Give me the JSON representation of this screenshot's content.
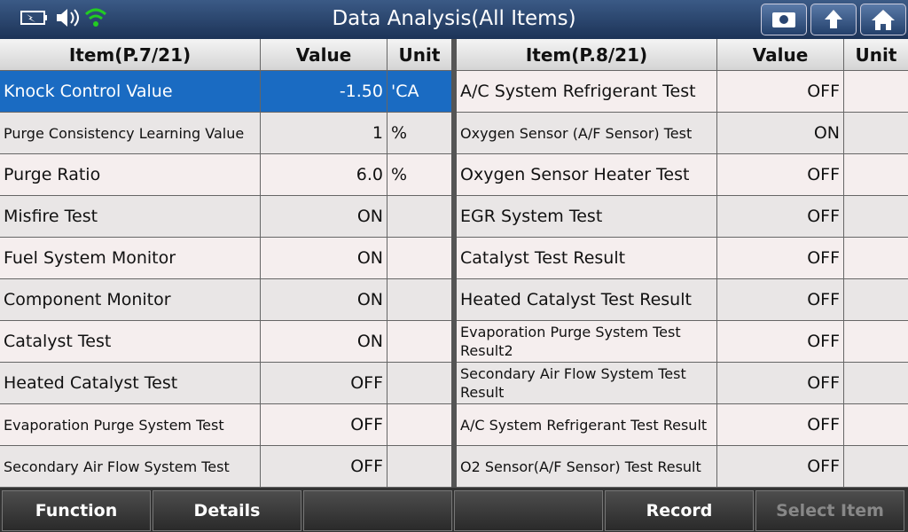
{
  "header": {
    "title": "Data Analysis(All Items)"
  },
  "left_table": {
    "columns": [
      "Item(P.7/21)",
      "Value",
      "Unit"
    ],
    "rows": [
      {
        "item": "Knock Control Value",
        "value": "-1.50",
        "unit": "'CA"
      },
      {
        "item": "Purge Consistency Learning Value",
        "value": "1",
        "unit": "%"
      },
      {
        "item": "Purge Ratio",
        "value": "6.0",
        "unit": "%"
      },
      {
        "item": "Misfire Test",
        "value": "ON"
      },
      {
        "item": "Fuel System Monitor",
        "value": "ON"
      },
      {
        "item": "Component Monitor",
        "value": "ON"
      },
      {
        "item": "Catalyst Test",
        "value": "ON"
      },
      {
        "item": "Heated Catalyst Test",
        "value": "OFF"
      },
      {
        "item": "Evaporation Purge System Test",
        "value": "OFF"
      },
      {
        "item": "Secondary Air Flow System Test",
        "value": "OFF"
      }
    ]
  },
  "right_table": {
    "columns": [
      "Item(P.8/21)",
      "Value",
      "Unit"
    ],
    "rows": [
      {
        "item": "A/C System Refrigerant Test",
        "value": "OFF"
      },
      {
        "item": "Oxygen Sensor (A/F Sensor) Test",
        "value": "ON"
      },
      {
        "item": "Oxygen Sensor Heater Test",
        "value": "OFF"
      },
      {
        "item": "EGR System Test",
        "value": "OFF"
      },
      {
        "item": "Catalyst Test Result",
        "value": "OFF"
      },
      {
        "item": "Heated Catalyst Test Result",
        "value": "OFF"
      },
      {
        "item": "Evaporation Purge System Test Result2",
        "value": "OFF"
      },
      {
        "item": "Secondary Air Flow System Test Result",
        "value": "OFF"
      },
      {
        "item": "A/C System Refrigerant Test Result",
        "value": "OFF"
      },
      {
        "item": "O2 Sensor(A/F Sensor) Test Result",
        "value": "OFF"
      }
    ]
  },
  "footer": {
    "buttons": [
      "Function",
      "Details",
      "Record",
      "Select Item"
    ]
  }
}
